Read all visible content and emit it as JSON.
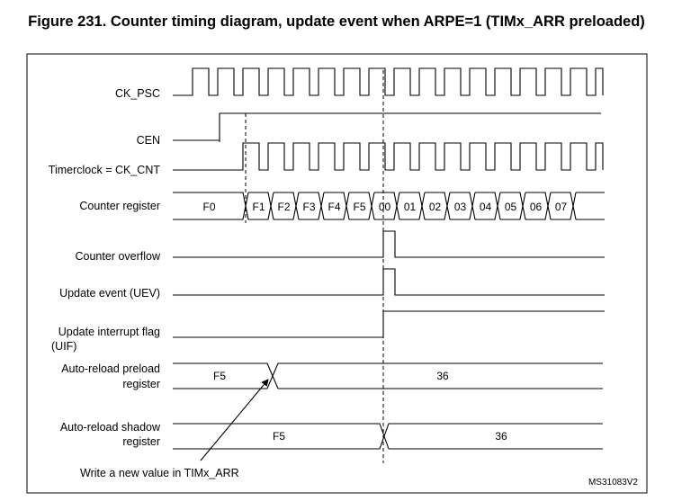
{
  "title": "Figure 231. Counter timing diagram, update event when ARPE=1 (TIMx_ARR preloaded)",
  "signals": {
    "ck_psc": "CK_PSC",
    "cen": "CEN",
    "timerclock": "Timerclock = CK_CNT",
    "counter_register": "Counter register",
    "counter_overflow": "Counter overflow",
    "update_event": "Update event (UEV)",
    "uif_line1": "Update interrupt flag",
    "uif_line2": "(UIF)",
    "arr_preload_line1": "Auto-reload preload",
    "arr_preload_line2": "register",
    "arr_shadow_line1": "Auto-reload shadow",
    "arr_shadow_line2": "register"
  },
  "counter_values": [
    "F0",
    "F1",
    "F2",
    "F3",
    "F4",
    "F5",
    "00",
    "01",
    "02",
    "03",
    "04",
    "05",
    "06",
    "07"
  ],
  "preload_values": [
    "F5",
    "36"
  ],
  "shadow_values": [
    "F5",
    "36"
  ],
  "annotation": "Write a new value in TIMx_ARR",
  "reference": "MS31083V2"
}
